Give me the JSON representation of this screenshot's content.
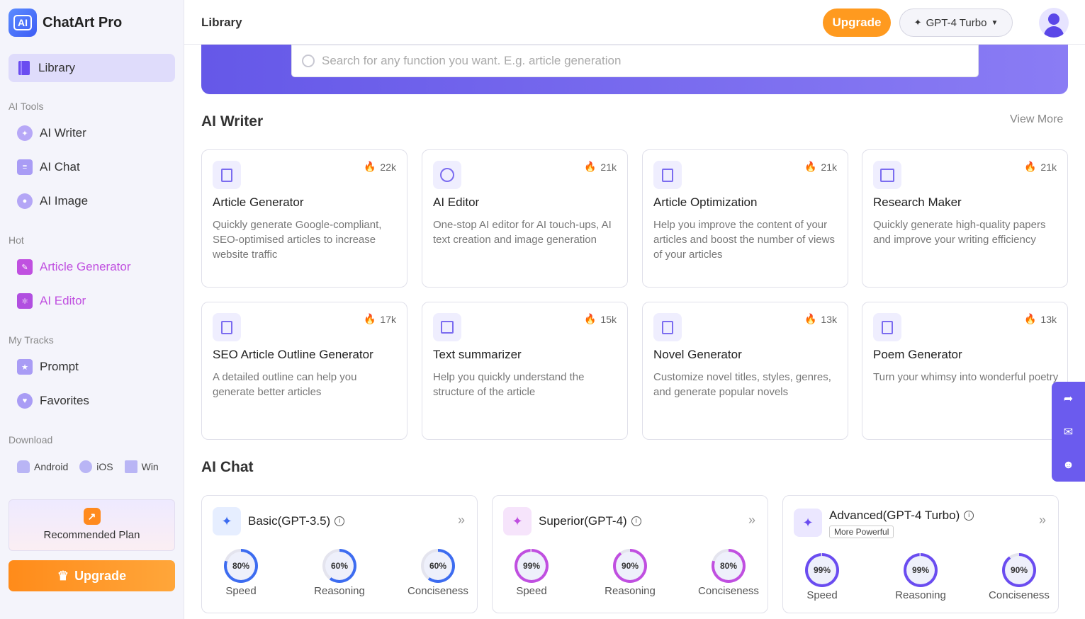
{
  "app": {
    "name": "ChatArt Pro",
    "logo_text": "AI"
  },
  "sidebar": {
    "library": "Library",
    "ai_tools_label": "AI Tools",
    "ai_tools": [
      {
        "label": "AI Writer",
        "icon": "bulb-icon"
      },
      {
        "label": "AI Chat",
        "icon": "chat-icon"
      },
      {
        "label": "AI Image",
        "icon": "palette-icon"
      }
    ],
    "hot_label": "Hot",
    "hot": [
      {
        "label": "Article Generator",
        "icon": "edit-icon"
      },
      {
        "label": "AI Editor",
        "icon": "atom-icon"
      }
    ],
    "tracks_label": "My Tracks",
    "tracks": [
      {
        "label": "Prompt",
        "icon": "star-icon"
      },
      {
        "label": "Favorites",
        "icon": "heart-icon"
      }
    ],
    "download_label": "Download",
    "downloads": [
      "Android",
      "iOS",
      "Win"
    ],
    "recommended_plan": "Recommended Plan",
    "upgrade": "Upgrade"
  },
  "header": {
    "title": "Library",
    "upgrade": "Upgrade",
    "model": "GPT-4 Turbo"
  },
  "search": {
    "placeholder": "Search for any function you want. E.g. article generation"
  },
  "ai_writer": {
    "title": "AI Writer",
    "view_more": "View More",
    "cards": [
      {
        "title": "Article Generator",
        "count": "22k",
        "desc": "Quickly generate Google-compliant, SEO-optimised articles to increase website traffic"
      },
      {
        "title": "AI Editor",
        "count": "21k",
        "desc": "One-stop AI editor for AI touch-ups, AI text creation and image generation"
      },
      {
        "title": "Article Optimization",
        "count": "21k",
        "desc": "Help you improve the content of your articles and boost the number of views of your articles"
      },
      {
        "title": "Research Maker",
        "count": "21k",
        "desc": "Quickly generate high-quality papers and improve your writing efficiency"
      },
      {
        "title": "SEO Article Outline Generator",
        "count": "17k",
        "desc": "A detailed outline can help you generate better articles"
      },
      {
        "title": "Text summarizer",
        "count": "15k",
        "desc": "Help you quickly understand the structure of the article"
      },
      {
        "title": "Novel Generator",
        "count": "13k",
        "desc": "Customize novel titles, styles, genres, and generate popular novels"
      },
      {
        "title": "Poem Generator",
        "count": "13k",
        "desc": "Turn your whimsy into wonderful poetry"
      }
    ]
  },
  "ai_chat": {
    "title": "AI Chat",
    "models": [
      {
        "name": "Basic(GPT-3.5)",
        "tag": "",
        "color": "#3d6cf0",
        "metrics": [
          {
            "label": "Speed",
            "value": "80%",
            "pct": 80
          },
          {
            "label": "Reasoning",
            "value": "60%",
            "pct": 60
          },
          {
            "label": "Conciseness",
            "value": "60%",
            "pct": 60
          }
        ]
      },
      {
        "name": "Superior(GPT-4)",
        "tag": "",
        "color": "#c04fe0",
        "metrics": [
          {
            "label": "Speed",
            "value": "99%",
            "pct": 99
          },
          {
            "label": "Reasoning",
            "value": "90%",
            "pct": 90
          },
          {
            "label": "Conciseness",
            "value": "80%",
            "pct": 80
          }
        ]
      },
      {
        "name": "Advanced(GPT-4 Turbo)",
        "tag": "More Powerful",
        "color": "#6a4cf0",
        "metrics": [
          {
            "label": "Speed",
            "value": "99%",
            "pct": 99
          },
          {
            "label": "Reasoning",
            "value": "99%",
            "pct": 99
          },
          {
            "label": "Conciseness",
            "value": "90%",
            "pct": 90
          }
        ]
      }
    ]
  }
}
